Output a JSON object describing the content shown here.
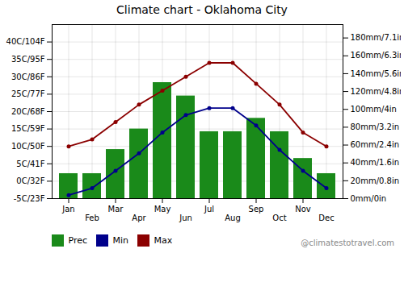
{
  "chart_data": {
    "type": "bar",
    "title": "Climate chart - Oklahoma City",
    "categories": [
      "Jan",
      "Feb",
      "Mar",
      "Apr",
      "May",
      "Jun",
      "Jul",
      "Aug",
      "Sep",
      "Oct",
      "Nov",
      "Dec"
    ],
    "series": [
      {
        "name": "Prec",
        "type": "bar",
        "axis": "y2",
        "color": "#1a8a1a",
        "values": [
          28,
          28,
          55,
          78,
          130,
          115,
          75,
          75,
          90,
          75,
          45,
          28
        ]
      },
      {
        "name": "Min",
        "type": "line",
        "color": "#00008b",
        "marker": "circle",
        "values": [
          -4,
          -2,
          3,
          8,
          14,
          19,
          21,
          21,
          16,
          9,
          3,
          -2
        ]
      },
      {
        "name": "Max",
        "type": "line",
        "color": "#8b0000",
        "marker": "circle",
        "values": [
          10,
          12,
          17,
          22,
          26,
          30,
          34,
          34,
          28,
          22,
          14,
          10
        ]
      }
    ],
    "ylim": [
      -5,
      45
    ],
    "yticks": [
      {
        "value": -5,
        "label": "-5C/23F"
      },
      {
        "value": 0,
        "label": "0C/32F"
      },
      {
        "value": 5,
        "label": "5C/41F"
      },
      {
        "value": 10,
        "label": "10C/50F"
      },
      {
        "value": 15,
        "label": "15C/59F"
      },
      {
        "value": 20,
        "label": "20C/68F"
      },
      {
        "value": 25,
        "label": "25C/77F"
      },
      {
        "value": 30,
        "label": "30C/86F"
      },
      {
        "value": 35,
        "label": "35C/95F"
      },
      {
        "value": 40,
        "label": "40C/104F"
      }
    ],
    "y2lim": [
      0,
      195
    ],
    "y2ticks": [
      {
        "value": 0,
        "label": "0mm/0in"
      },
      {
        "value": 20,
        "label": "20mm/0.8in"
      },
      {
        "value": 40,
        "label": "40mm/1.6in"
      },
      {
        "value": 60,
        "label": "60mm/2.4in"
      },
      {
        "value": 80,
        "label": "80mm/3.2in"
      },
      {
        "value": 100,
        "label": "100mm/4in"
      },
      {
        "value": 120,
        "label": "120mm/4.8in"
      },
      {
        "value": 140,
        "label": "140mm/5.6in"
      },
      {
        "value": 160,
        "label": "160mm/6.3in"
      },
      {
        "value": 180,
        "label": "180mm/7.1in"
      }
    ],
    "grid": true,
    "legend": "bottom",
    "annotations": [
      "@climatestotravel.com"
    ]
  }
}
